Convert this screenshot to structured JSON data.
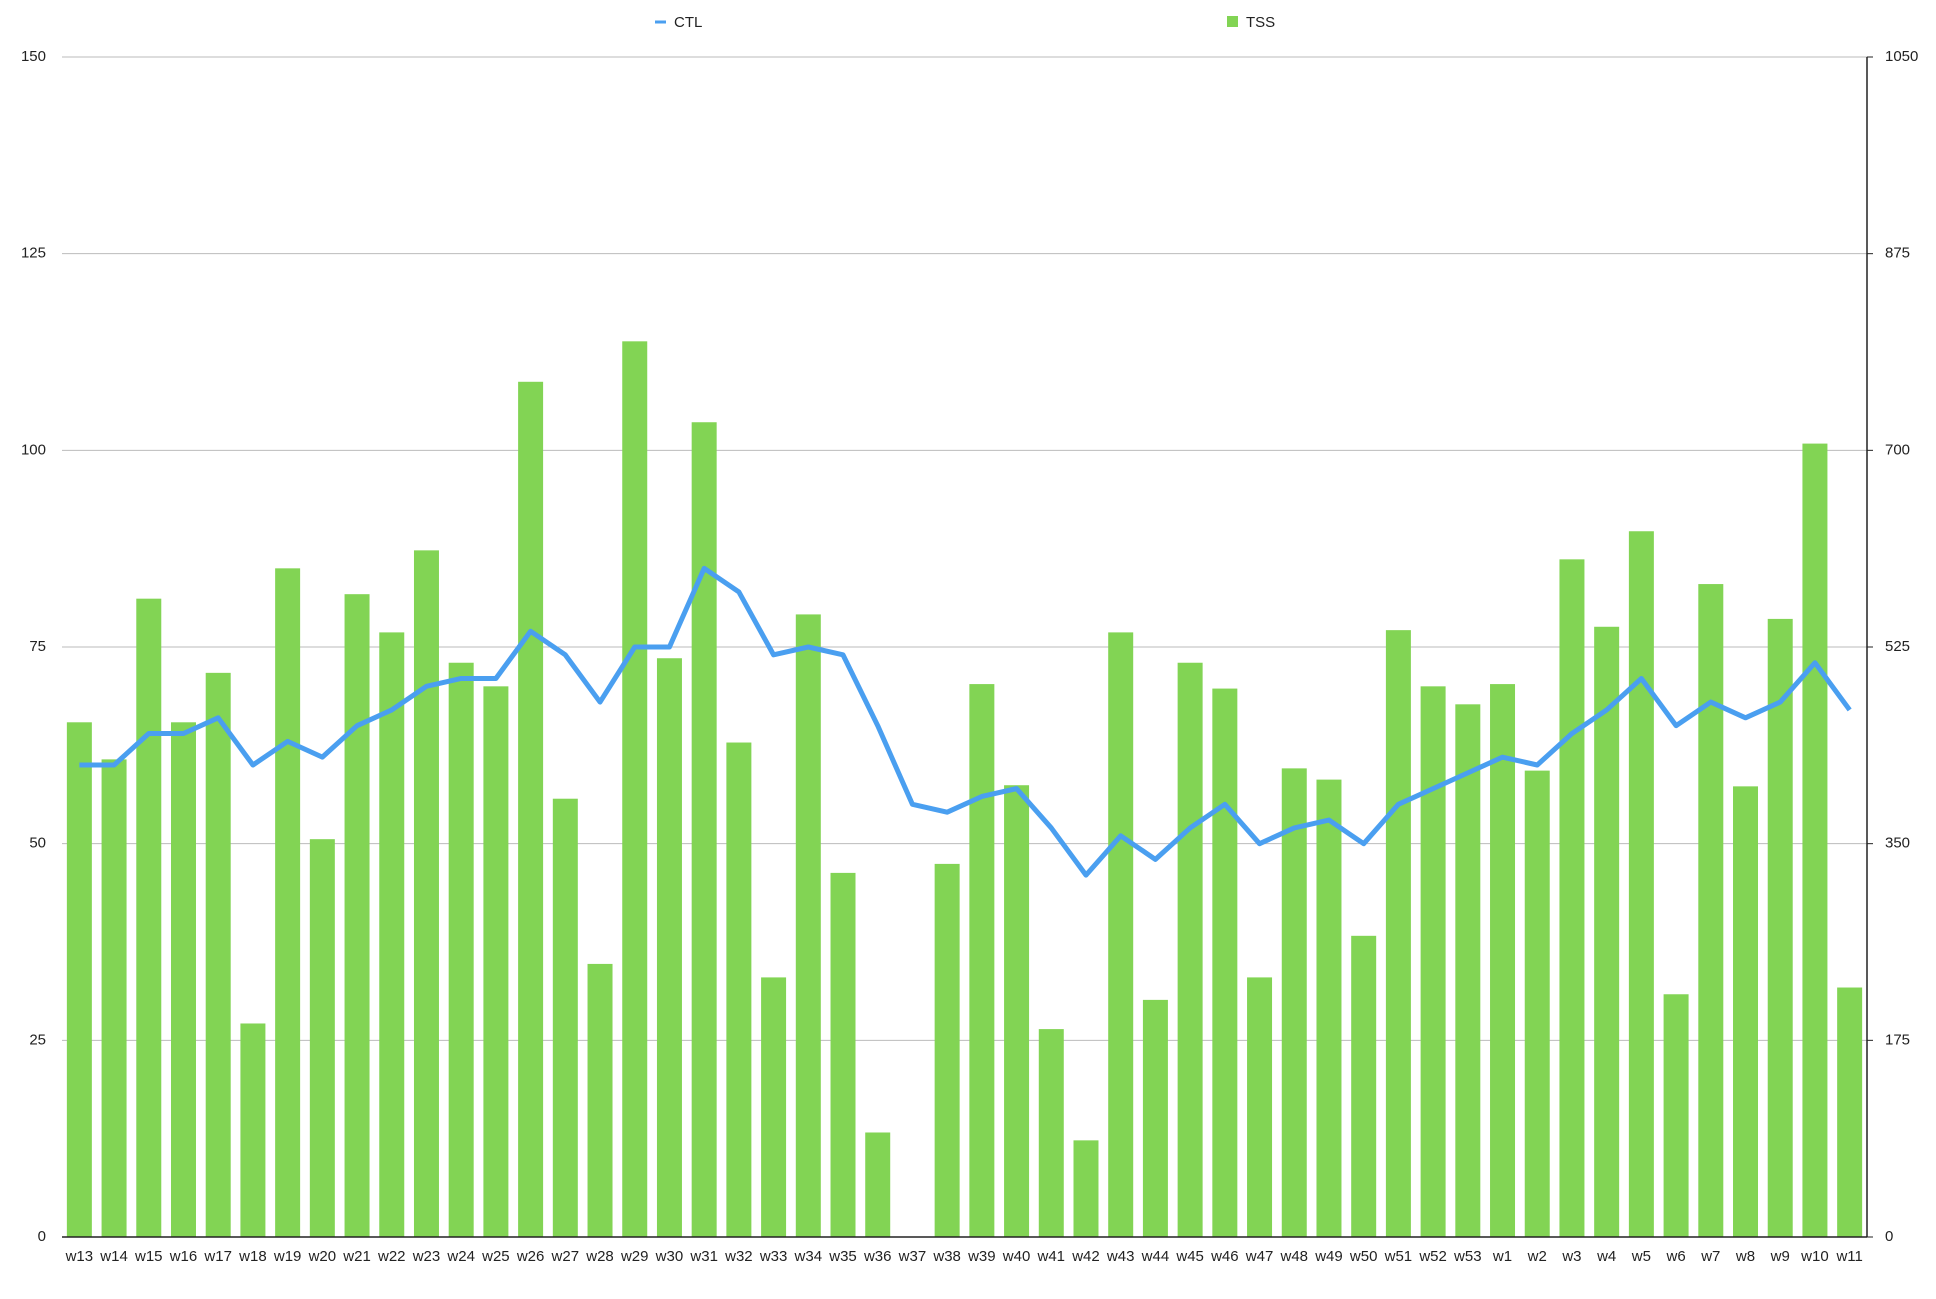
{
  "chart_data": {
    "type": "bar-line",
    "categories": [
      "w13",
      "w14",
      "w15",
      "w16",
      "w17",
      "w18",
      "w19",
      "w20",
      "w21",
      "w22",
      "w23",
      "w24",
      "w25",
      "w26",
      "w27",
      "w28",
      "w29",
      "w30",
      "w31",
      "w32",
      "w33",
      "w34",
      "w35",
      "w36",
      "w37",
      "w38",
      "w39",
      "w40",
      "w41",
      "w42",
      "w43",
      "w44",
      "w45",
      "w46",
      "w47",
      "w48",
      "w49",
      "w50",
      "w51",
      "w52",
      "w53",
      "w1",
      "w2",
      "w3",
      "w4",
      "w5",
      "w6",
      "w7",
      "w8",
      "w9",
      "w10",
      "w11"
    ],
    "series": [
      {
        "name": "CTL",
        "type": "line",
        "color": "#4a9ff0",
        "values": [
          60,
          60,
          64,
          64,
          66,
          60,
          63,
          61,
          65,
          67,
          70,
          71,
          71,
          77,
          74,
          68,
          75,
          75,
          85,
          82,
          74,
          75,
          74,
          65,
          55,
          54,
          56,
          57,
          52,
          46,
          51,
          48,
          52,
          55,
          50,
          52,
          53,
          50,
          55,
          57,
          59,
          61,
          60,
          64,
          67,
          71,
          65,
          68,
          66,
          68,
          73,
          67
        ]
      },
      {
        "name": "TSS",
        "type": "bar",
        "axis": "y2",
        "color": "#82d454",
        "values": [
          458,
          425,
          568,
          458,
          502,
          190,
          595,
          354,
          572,
          538,
          611,
          511,
          490,
          761,
          390,
          243,
          797,
          515,
          725,
          440,
          231,
          554,
          324,
          93,
          0,
          332,
          492,
          402,
          185,
          86,
          538,
          211,
          511,
          488,
          231,
          417,
          407,
          268,
          540,
          490,
          474,
          492,
          415,
          603,
          543,
          628,
          216,
          581,
          401,
          550,
          706,
          222
        ]
      }
    ],
    "ylim": [
      0,
      150
    ],
    "yticks": [
      0,
      25,
      50,
      75,
      100,
      125,
      150
    ],
    "y2lim": [
      0,
      1050
    ],
    "y2ticks": [
      0,
      175,
      350,
      525,
      700,
      875,
      1050
    ],
    "grid": true,
    "legend": "top"
  }
}
